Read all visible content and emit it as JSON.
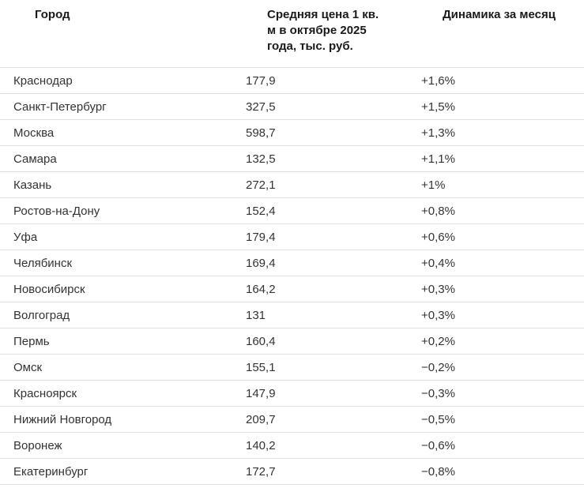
{
  "table": {
    "headers": {
      "city": "Город",
      "price": "Средняя цена 1 кв.\nм в октябре 2025\nгода, тыс. руб.",
      "change": "Динамика за месяц"
    },
    "rows": [
      {
        "city": "Краснодар",
        "price": "177,9",
        "change": "+1,6%"
      },
      {
        "city": "Санкт-Петербург",
        "price": "327,5",
        "change": "+1,5%"
      },
      {
        "city": "Москва",
        "price": "598,7",
        "change": "+1,3%"
      },
      {
        "city": "Самара",
        "price": "132,5",
        "change": "+1,1%"
      },
      {
        "city": "Казань",
        "price": "272,1",
        "change": "+1%"
      },
      {
        "city": "Ростов-на-Дону",
        "price": "152,4",
        "change": "+0,8%"
      },
      {
        "city": "Уфа",
        "price": "179,4",
        "change": "+0,6%"
      },
      {
        "city": "Челябинск",
        "price": "169,4",
        "change": "+0,4%"
      },
      {
        "city": "Новосибирск",
        "price": "164,2",
        "change": "+0,3%"
      },
      {
        "city": "Волгоград",
        "price": "131",
        "change": "+0,3%"
      },
      {
        "city": "Пермь",
        "price": "160,4",
        "change": "+0,2%"
      },
      {
        "city": "Омск",
        "price": "155,1",
        "change": "−0,2%"
      },
      {
        "city": "Красноярск",
        "price": "147,9",
        "change": "−0,3%"
      },
      {
        "city": "Нижний Новгород",
        "price": "209,7",
        "change": "−0,5%"
      },
      {
        "city": "Воронеж",
        "price": "140,2",
        "change": "−0,6%"
      },
      {
        "city": "Екатеринбург",
        "price": "172,7",
        "change": "−0,8%"
      }
    ]
  },
  "chart_data": {
    "type": "table",
    "title": "",
    "columns": [
      "Город",
      "Средняя цена 1 кв. м в октябре 2025 года, тыс. руб.",
      "Динамика за месяц"
    ],
    "rows": [
      [
        "Краснодар",
        177.9,
        "+1,6%"
      ],
      [
        "Санкт-Петербург",
        327.5,
        "+1,5%"
      ],
      [
        "Москва",
        598.7,
        "+1,3%"
      ],
      [
        "Самара",
        132.5,
        "+1,1%"
      ],
      [
        "Казань",
        272.1,
        "+1%"
      ],
      [
        "Ростов-на-Дону",
        152.4,
        "+0,8%"
      ],
      [
        "Уфа",
        179.4,
        "+0,6%"
      ],
      [
        "Челябинск",
        169.4,
        "+0,4%"
      ],
      [
        "Новосибирск",
        164.2,
        "+0,3%"
      ],
      [
        "Волгоград",
        131,
        "+0,3%"
      ],
      [
        "Пермь",
        160.4,
        "+0,2%"
      ],
      [
        "Омск",
        155.1,
        "−0,2%"
      ],
      [
        "Красноярск",
        147.9,
        "−0,3%"
      ],
      [
        "Нижний Новгород",
        209.7,
        "−0,5%"
      ],
      [
        "Воронеж",
        140.2,
        "−0,6%"
      ],
      [
        "Екатеринбург",
        172.7,
        "−0,8%"
      ]
    ],
    "change_values_pct": [
      1.6,
      1.5,
      1.3,
      1.1,
      1.0,
      0.8,
      0.6,
      0.4,
      0.3,
      0.3,
      0.2,
      -0.2,
      -0.3,
      -0.5,
      -0.6,
      -0.8
    ]
  },
  "colors": {
    "background": "#ffffff",
    "header_text": "#1a1a1a",
    "body_text": "#333333",
    "divider": "#e0e0e0"
  }
}
